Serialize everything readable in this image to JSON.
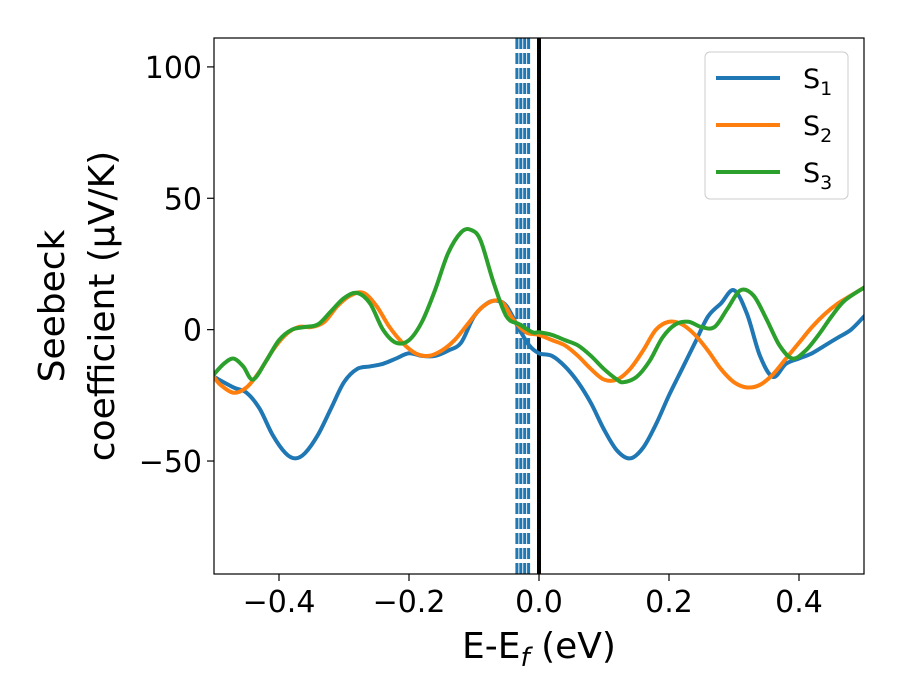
{
  "chart_data": {
    "type": "line",
    "xlabel": {
      "base": "E-E",
      "sub": "f",
      "tail": " (eV)"
    },
    "ylabel": {
      "line1": "Seebeck",
      "line2": "coefficient  (μV/K)"
    },
    "xlim": [
      -0.5,
      0.5
    ],
    "ylim": [
      -93,
      111
    ],
    "xticks": [
      -0.4,
      -0.2,
      0.0,
      0.2,
      0.4
    ],
    "xtick_labels": [
      "−0.4",
      "−0.2",
      "0.0",
      "0.2",
      "0.4"
    ],
    "yticks": [
      -50,
      0,
      50,
      100
    ],
    "ytick_labels": [
      "−50",
      "0",
      "50",
      "100"
    ],
    "grid": false,
    "legend_position": "top-right",
    "vlines": [
      {
        "x": 0.0,
        "color": "#000000",
        "style": "solid"
      },
      {
        "x": -0.034,
        "color": "#1f77b4",
        "style": "dashed"
      },
      {
        "x": -0.028,
        "color": "#1f77b4",
        "style": "dashed"
      },
      {
        "x": -0.022,
        "color": "#1f77b4",
        "style": "dashed"
      },
      {
        "x": -0.016,
        "color": "#1f77b4",
        "style": "dashed"
      }
    ],
    "series": [
      {
        "name": "S",
        "sub": "1",
        "color": "#1f77b4",
        "x": [
          -0.5,
          -0.47,
          -0.45,
          -0.43,
          -0.41,
          -0.39,
          -0.375,
          -0.36,
          -0.34,
          -0.32,
          -0.3,
          -0.28,
          -0.26,
          -0.24,
          -0.22,
          -0.2,
          -0.18,
          -0.16,
          -0.14,
          -0.12,
          -0.1,
          -0.08,
          -0.065,
          -0.05,
          -0.03,
          -0.015,
          0.0,
          0.02,
          0.04,
          0.06,
          0.08,
          0.1,
          0.12,
          0.14,
          0.16,
          0.18,
          0.2,
          0.22,
          0.24,
          0.26,
          0.28,
          0.3,
          0.32,
          0.34,
          0.36,
          0.38,
          0.4,
          0.42,
          0.44,
          0.46,
          0.48,
          0.5
        ],
        "y": [
          -18,
          -22,
          -24,
          -30,
          -40,
          -47,
          -49,
          -47,
          -40,
          -30,
          -20,
          -15,
          -14,
          -13,
          -11,
          -9,
          -10,
          -10,
          -8,
          -5,
          5,
          10,
          11,
          9,
          0,
          -6,
          -9,
          -10,
          -14,
          -20,
          -28,
          -38,
          -46,
          -49,
          -45,
          -36,
          -25,
          -15,
          -5,
          5,
          10,
          15,
          6,
          -10,
          -18,
          -13,
          -11,
          -9,
          -6,
          -3,
          0,
          5
        ]
      },
      {
        "name": "S",
        "sub": "2",
        "color": "#ff7f0e",
        "x": [
          -0.5,
          -0.49,
          -0.47,
          -0.45,
          -0.43,
          -0.41,
          -0.39,
          -0.37,
          -0.35,
          -0.33,
          -0.31,
          -0.29,
          -0.27,
          -0.25,
          -0.23,
          -0.21,
          -0.19,
          -0.17,
          -0.15,
          -0.13,
          -0.11,
          -0.09,
          -0.07,
          -0.055,
          -0.04,
          -0.02,
          0.0,
          0.02,
          0.04,
          0.06,
          0.08,
          0.1,
          0.12,
          0.14,
          0.16,
          0.18,
          0.2,
          0.22,
          0.24,
          0.26,
          0.28,
          0.3,
          0.32,
          0.34,
          0.36,
          0.38,
          0.4,
          0.42,
          0.44,
          0.46,
          0.48,
          0.5
        ],
        "y": [
          -18,
          -21,
          -24,
          -22,
          -16,
          -8,
          -2,
          1,
          1,
          3,
          9,
          13,
          14,
          9,
          1,
          -5,
          -9,
          -10,
          -8,
          -4,
          2,
          8,
          11,
          10,
          4,
          -1,
          -2,
          -4,
          -6,
          -10,
          -15,
          -19,
          -19,
          -15,
          -8,
          0,
          3,
          2,
          -2,
          -8,
          -15,
          -20,
          -22,
          -21,
          -17,
          -11,
          -5,
          1,
          6,
          10,
          13,
          16
        ]
      },
      {
        "name": "S",
        "sub": "3",
        "color": "#2ca02c",
        "x": [
          -0.5,
          -0.485,
          -0.47,
          -0.455,
          -0.44,
          -0.42,
          -0.4,
          -0.38,
          -0.36,
          -0.34,
          -0.32,
          -0.3,
          -0.28,
          -0.26,
          -0.24,
          -0.22,
          -0.2,
          -0.18,
          -0.16,
          -0.14,
          -0.12,
          -0.105,
          -0.09,
          -0.07,
          -0.05,
          -0.03,
          -0.01,
          0.0,
          0.02,
          0.04,
          0.06,
          0.08,
          0.1,
          0.12,
          0.13,
          0.15,
          0.17,
          0.19,
          0.21,
          0.23,
          0.25,
          0.27,
          0.29,
          0.31,
          0.33,
          0.35,
          0.37,
          0.39,
          0.41,
          0.43,
          0.45,
          0.47,
          0.5
        ],
        "y": [
          -17,
          -13,
          -11,
          -14,
          -19,
          -12,
          -4,
          0,
          1,
          2,
          7,
          12,
          14,
          10,
          0,
          -5,
          -4,
          3,
          15,
          29,
          37,
          38,
          34,
          18,
          5,
          2,
          -1,
          -1,
          -2,
          -4,
          -6,
          -10,
          -15,
          -19,
          -20,
          -18,
          -12,
          -3,
          2,
          3,
          1,
          1,
          8,
          15,
          13,
          4,
          -6,
          -11,
          -8,
          -2,
          5,
          11,
          16
        ]
      }
    ]
  }
}
